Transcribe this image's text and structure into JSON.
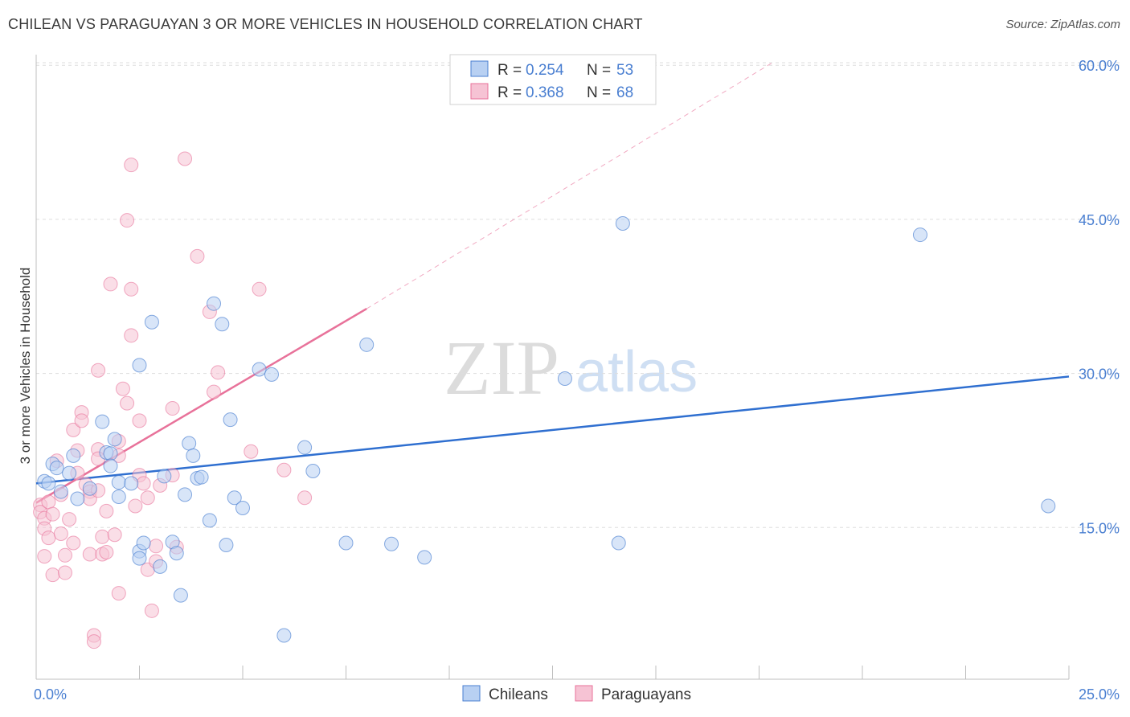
{
  "title": "CHILEAN VS PARAGUAYAN 3 OR MORE VEHICLES IN HOUSEHOLD CORRELATION CHART",
  "source": "Source: ZipAtlas.com",
  "watermark": {
    "zip": "ZIP",
    "atlas": "atlas"
  },
  "colors": {
    "blue": "#4a7fd1",
    "blue_fill": "#b8d0f2",
    "blue_line": "#2f6fd0",
    "pink": "#e8729a",
    "pink_fill": "#f6c3d4",
    "grid": "#dddddd"
  },
  "chart_data": {
    "type": "scatter",
    "title": "CHILEAN VS PARAGUAYAN 3 OR MORE VEHICLES IN HOUSEHOLD CORRELATION CHART",
    "xlabel": "",
    "ylabel": "3 or more Vehicles in Household",
    "xlim": [
      0,
      25
    ],
    "ylim": [
      0,
      61
    ],
    "x_tick_labels": [
      "0.0%",
      "25.0%"
    ],
    "y_ticks": [
      15,
      30,
      45,
      60
    ],
    "y_tick_labels": [
      "15.0%",
      "30.0%",
      "45.0%",
      "60.0%"
    ],
    "legend": [
      {
        "name": "Chileans",
        "r_label": "R = ",
        "r": "0.254",
        "n_label": "N = ",
        "n": "53"
      },
      {
        "name": "Paraguayans",
        "r_label": "R = ",
        "r": "0.368",
        "n_label": "N = ",
        "n": "68"
      }
    ],
    "series": [
      {
        "name": "Chileans",
        "trend": {
          "x0": 0,
          "y0": 19.3,
          "x1": 25,
          "y1": 29.7
        },
        "points": [
          [
            0.2,
            19.5
          ],
          [
            0.3,
            19.3
          ],
          [
            0.4,
            21.2
          ],
          [
            0.5,
            20.8
          ],
          [
            0.6,
            18.5
          ],
          [
            0.8,
            20.3
          ],
          [
            0.9,
            22
          ],
          [
            1.0,
            17.8
          ],
          [
            1.3,
            18.8
          ],
          [
            1.7,
            22.3
          ],
          [
            1.8,
            22.2
          ],
          [
            1.6,
            25.3
          ],
          [
            1.8,
            21
          ],
          [
            1.9,
            23.6
          ],
          [
            2.0,
            18
          ],
          [
            2.0,
            19.4
          ],
          [
            2.3,
            19.3
          ],
          [
            2.5,
            12.7
          ],
          [
            2.5,
            12
          ],
          [
            2.5,
            30.8
          ],
          [
            2.6,
            13.5
          ],
          [
            2.8,
            35
          ],
          [
            3.0,
            11.2
          ],
          [
            3.1,
            20
          ],
          [
            3.3,
            13.6
          ],
          [
            3.4,
            12.5
          ],
          [
            3.5,
            8.4
          ],
          [
            3.6,
            18.2
          ],
          [
            3.7,
            23.2
          ],
          [
            3.8,
            22
          ],
          [
            3.9,
            19.8
          ],
          [
            4.0,
            19.9
          ],
          [
            4.2,
            15.7
          ],
          [
            4.3,
            36.8
          ],
          [
            4.5,
            34.8
          ],
          [
            4.6,
            13.3
          ],
          [
            4.7,
            25.5
          ],
          [
            4.8,
            17.9
          ],
          [
            5.0,
            16.9
          ],
          [
            5.4,
            30.4
          ],
          [
            5.7,
            29.9
          ],
          [
            6.0,
            4.5
          ],
          [
            6.5,
            22.8
          ],
          [
            6.7,
            20.5
          ],
          [
            7.5,
            13.5
          ],
          [
            8.0,
            32.8
          ],
          [
            8.6,
            13.4
          ],
          [
            9.4,
            12.1
          ],
          [
            12.8,
            29.5
          ],
          [
            14.1,
            13.5
          ],
          [
            14.2,
            44.6
          ],
          [
            21.4,
            43.5
          ],
          [
            24.5,
            17.1
          ]
        ]
      },
      {
        "name": "Paraguayans",
        "trend": {
          "x0": 0,
          "y0": 17.4,
          "x1": 8.0,
          "y1": 36.3
        },
        "dashed_trend": {
          "x0": 8.0,
          "y0": 36.3,
          "x1": 17.8,
          "y1": 60.2
        },
        "points": [
          [
            0.1,
            17.2
          ],
          [
            0.1,
            16.5
          ],
          [
            0.2,
            15.9
          ],
          [
            0.2,
            14.9
          ],
          [
            0.2,
            12.2
          ],
          [
            0.3,
            17.5
          ],
          [
            0.3,
            14
          ],
          [
            0.4,
            16.3
          ],
          [
            0.4,
            10.4
          ],
          [
            0.5,
            21.5
          ],
          [
            0.6,
            18.2
          ],
          [
            0.6,
            14.4
          ],
          [
            0.7,
            10.6
          ],
          [
            0.7,
            12.3
          ],
          [
            0.8,
            15.8
          ],
          [
            0.9,
            13.5
          ],
          [
            0.9,
            24.5
          ],
          [
            1.0,
            20.3
          ],
          [
            1.0,
            22.5
          ],
          [
            1.1,
            26.2
          ],
          [
            1.1,
            25.4
          ],
          [
            1.2,
            19.2
          ],
          [
            1.3,
            18.5
          ],
          [
            1.3,
            17.8
          ],
          [
            1.3,
            12.4
          ],
          [
            1.4,
            4.5
          ],
          [
            1.4,
            3.9
          ],
          [
            1.5,
            22.6
          ],
          [
            1.5,
            30.3
          ],
          [
            1.5,
            21.7
          ],
          [
            1.5,
            18.6
          ],
          [
            1.6,
            14.1
          ],
          [
            1.6,
            12.4
          ],
          [
            1.7,
            16.6
          ],
          [
            1.7,
            12.6
          ],
          [
            1.8,
            38.7
          ],
          [
            1.9,
            14.3
          ],
          [
            2.0,
            23.4
          ],
          [
            2.0,
            22
          ],
          [
            2.0,
            8.6
          ],
          [
            2.1,
            28.5
          ],
          [
            2.2,
            44.9
          ],
          [
            2.2,
            27.1
          ],
          [
            2.3,
            50.3
          ],
          [
            2.3,
            33.7
          ],
          [
            2.3,
            38.2
          ],
          [
            2.4,
            17.1
          ],
          [
            2.5,
            25.4
          ],
          [
            2.5,
            20.1
          ],
          [
            2.6,
            19.3
          ],
          [
            2.7,
            17.9
          ],
          [
            2.7,
            10.9
          ],
          [
            2.8,
            6.9
          ],
          [
            2.9,
            11.7
          ],
          [
            2.9,
            13.2
          ],
          [
            3.0,
            19.1
          ],
          [
            3.3,
            26.6
          ],
          [
            3.3,
            20.1
          ],
          [
            3.4,
            13.1
          ],
          [
            3.6,
            50.9
          ],
          [
            3.9,
            41.4
          ],
          [
            4.2,
            36
          ],
          [
            4.3,
            28.2
          ],
          [
            4.4,
            30.1
          ],
          [
            5.2,
            22.4
          ],
          [
            5.4,
            38.2
          ],
          [
            6.0,
            20.6
          ],
          [
            6.5,
            17.9
          ]
        ]
      }
    ]
  }
}
